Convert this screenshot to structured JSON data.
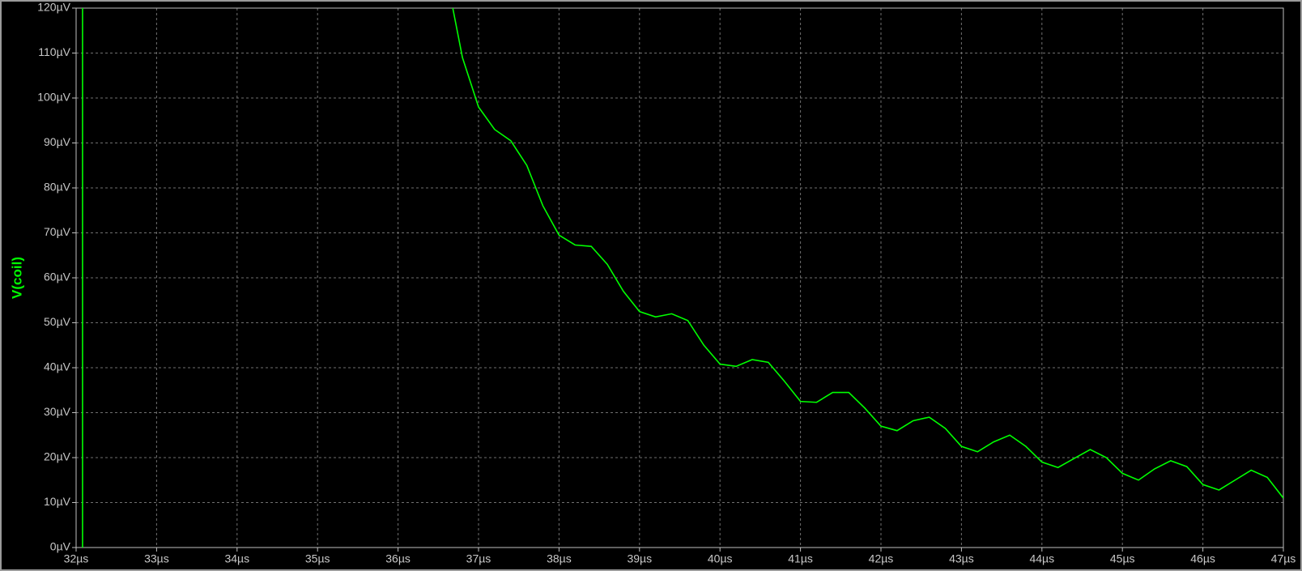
{
  "chart_data": {
    "type": "line",
    "x": [
      32.08,
      32.08,
      null,
      36.68,
      36.8,
      37.0,
      37.2,
      37.4,
      37.6,
      37.8,
      38.0,
      38.2,
      38.4,
      38.6,
      38.8,
      39.0,
      39.2,
      39.4,
      39.6,
      39.8,
      40.0,
      40.2,
      40.4,
      40.6,
      40.8,
      41.0,
      41.2,
      41.4,
      41.6,
      41.8,
      42.0,
      42.2,
      42.4,
      42.6,
      42.8,
      43.0,
      43.2,
      43.4,
      43.6,
      43.8,
      44.0,
      44.2,
      44.4,
      44.6,
      44.8,
      45.0,
      45.2,
      45.4,
      45.6,
      45.8,
      46.0,
      46.2,
      46.4,
      46.6,
      46.8,
      47.0
    ],
    "series": [
      {
        "name": "V(coil)",
        "color": "#00ff00",
        "values": [
          0,
          120,
          null,
          120,
          109,
          98,
          93,
          90.5,
          85,
          76,
          69.5,
          67.3,
          67,
          63,
          57,
          52.5,
          51.3,
          52,
          50.5,
          45,
          40.8,
          40.3,
          41.8,
          41.2,
          37,
          32.5,
          32.3,
          34.5,
          34.5,
          31,
          27,
          26,
          28.2,
          29,
          26.5,
          22.5,
          21.3,
          23.5,
          25,
          22.5,
          19,
          17.8,
          19.8,
          21.8,
          20,
          16.5,
          15,
          17.5,
          19.3,
          18,
          14,
          12.8,
          15,
          17.2,
          15.6,
          11
        ]
      }
    ],
    "xlim": [
      32,
      47
    ],
    "ylim": [
      0,
      120
    ],
    "xticks": [
      {
        "value": 32,
        "label": "32µs"
      },
      {
        "value": 33,
        "label": "33µs"
      },
      {
        "value": 34,
        "label": "34µs"
      },
      {
        "value": 35,
        "label": "35µs"
      },
      {
        "value": 36,
        "label": "36µs"
      },
      {
        "value": 37,
        "label": "37µs"
      },
      {
        "value": 38,
        "label": "38µs"
      },
      {
        "value": 39,
        "label": "39µs"
      },
      {
        "value": 40,
        "label": "40µs"
      },
      {
        "value": 41,
        "label": "41µs"
      },
      {
        "value": 42,
        "label": "42µs"
      },
      {
        "value": 43,
        "label": "43µs"
      },
      {
        "value": 44,
        "label": "44µs"
      },
      {
        "value": 45,
        "label": "45µs"
      },
      {
        "value": 46,
        "label": "46µs"
      },
      {
        "value": 47,
        "label": "47µs"
      }
    ],
    "yticks": [
      {
        "value": 0,
        "label": "0µV"
      },
      {
        "value": 10,
        "label": "10µV"
      },
      {
        "value": 20,
        "label": "20µV"
      },
      {
        "value": 30,
        "label": "30µV"
      },
      {
        "value": 40,
        "label": "40µV"
      },
      {
        "value": 50,
        "label": "50µV"
      },
      {
        "value": 60,
        "label": "60µV"
      },
      {
        "value": 70,
        "label": "70µV"
      },
      {
        "value": 80,
        "label": "80µV"
      },
      {
        "value": 90,
        "label": "90µV"
      },
      {
        "value": 100,
        "label": "100µV"
      },
      {
        "value": 110,
        "label": "110µV"
      },
      {
        "value": 120,
        "label": "120µV"
      }
    ],
    "grid": true
  }
}
